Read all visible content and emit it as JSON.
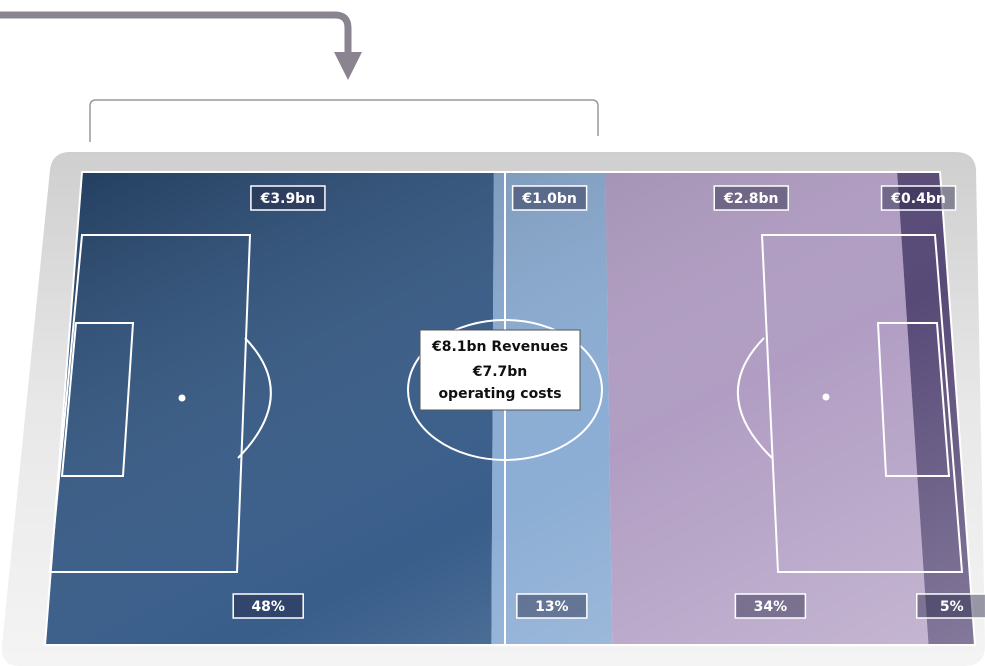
{
  "center": {
    "revenues": "€8.1bn Revenues",
    "costs_amount": "€7.7bn",
    "costs_label": "operating costs"
  },
  "segments": [
    {
      "amount": "€3.9bn",
      "share": 48,
      "share_label": "48%",
      "color": "#2e5584"
    },
    {
      "amount": "€1.0bn",
      "share": 13,
      "share_label": "13%",
      "color": "#86a9d2"
    },
    {
      "amount": "€2.8bn",
      "share": 34,
      "share_label": "34%",
      "color": "#ad98c0"
    },
    {
      "amount": "€0.4bn",
      "share": 5,
      "share_label": "5%",
      "color": "#4f4070"
    }
  ]
}
